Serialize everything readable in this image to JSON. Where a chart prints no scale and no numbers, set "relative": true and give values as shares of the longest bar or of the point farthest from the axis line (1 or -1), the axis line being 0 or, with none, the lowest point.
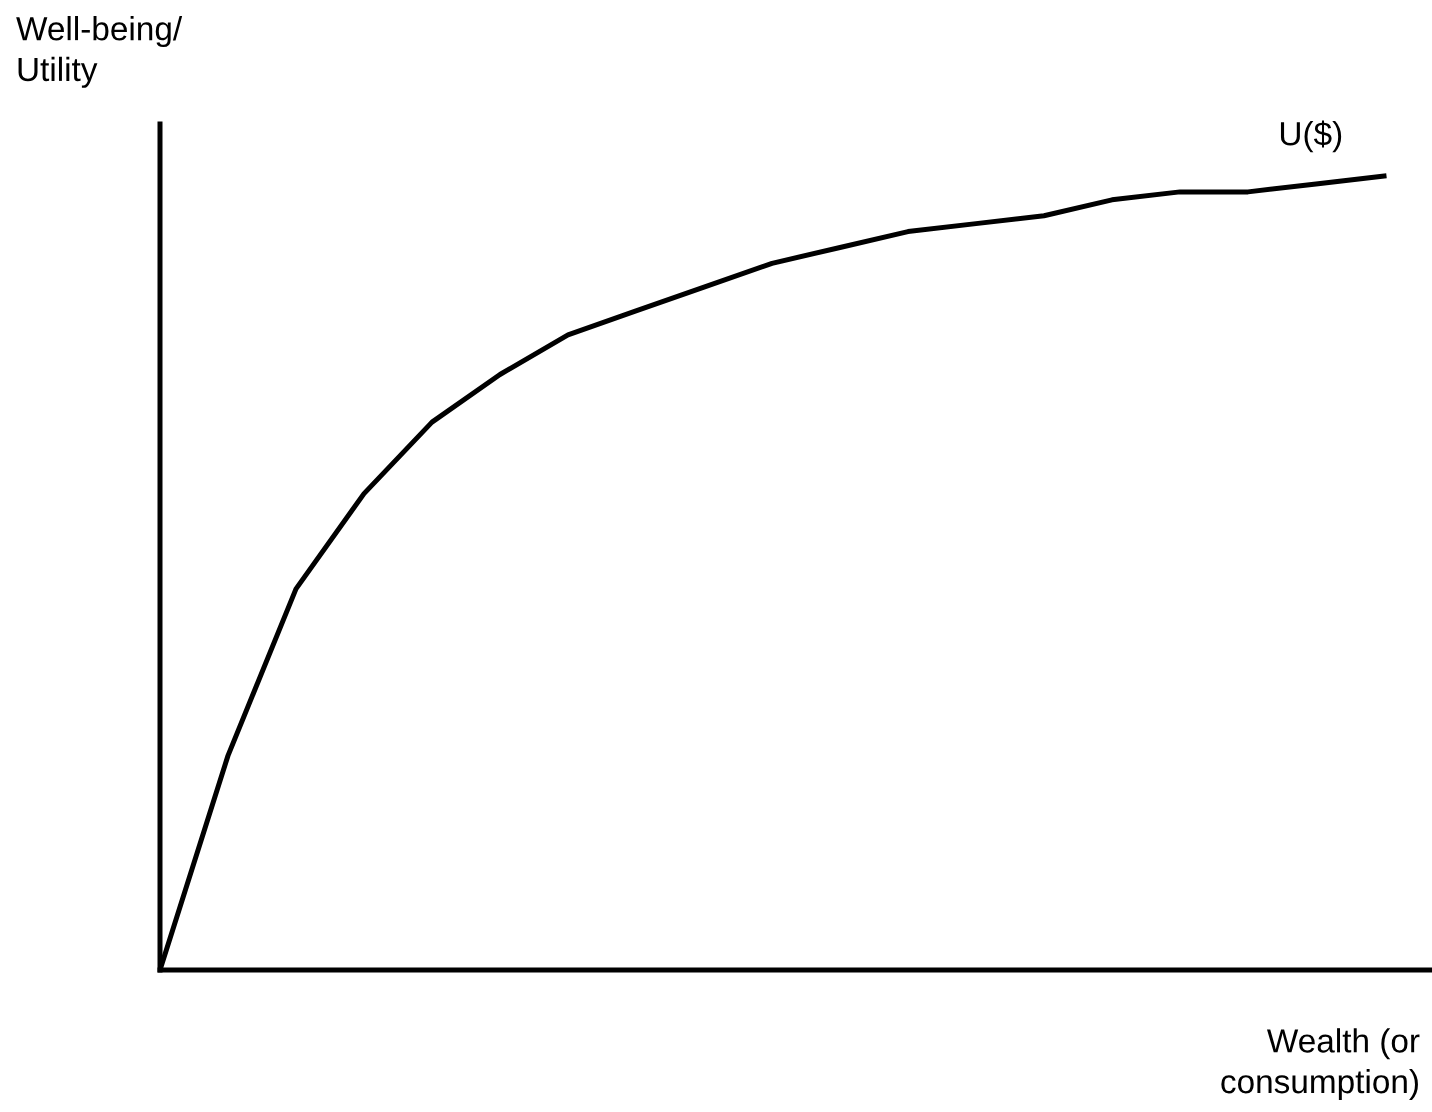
{
  "chart_data": {
    "type": "line",
    "relative": true,
    "xlabel": "Wealth (or\nconsumption)",
    "ylabel": "Well-being/\nUtility",
    "categories": [
      null,
      null,
      null,
      null,
      null,
      null,
      null,
      null,
      null,
      null,
      null,
      null,
      null,
      null,
      null,
      null,
      null,
      null,
      null
    ],
    "series": [
      {
        "name": "U($)",
        "color": "#000000",
        "values": [
          0,
          0.27,
          0.48,
          0.6,
          0.69,
          0.75,
          0.8,
          0.83,
          0.86,
          0.89,
          0.91,
          0.93,
          0.94,
          0.95,
          0.97,
          0.98,
          0.98,
          0.99,
          1
        ]
      }
    ],
    "marker": "none",
    "line_style": "solid"
  }
}
